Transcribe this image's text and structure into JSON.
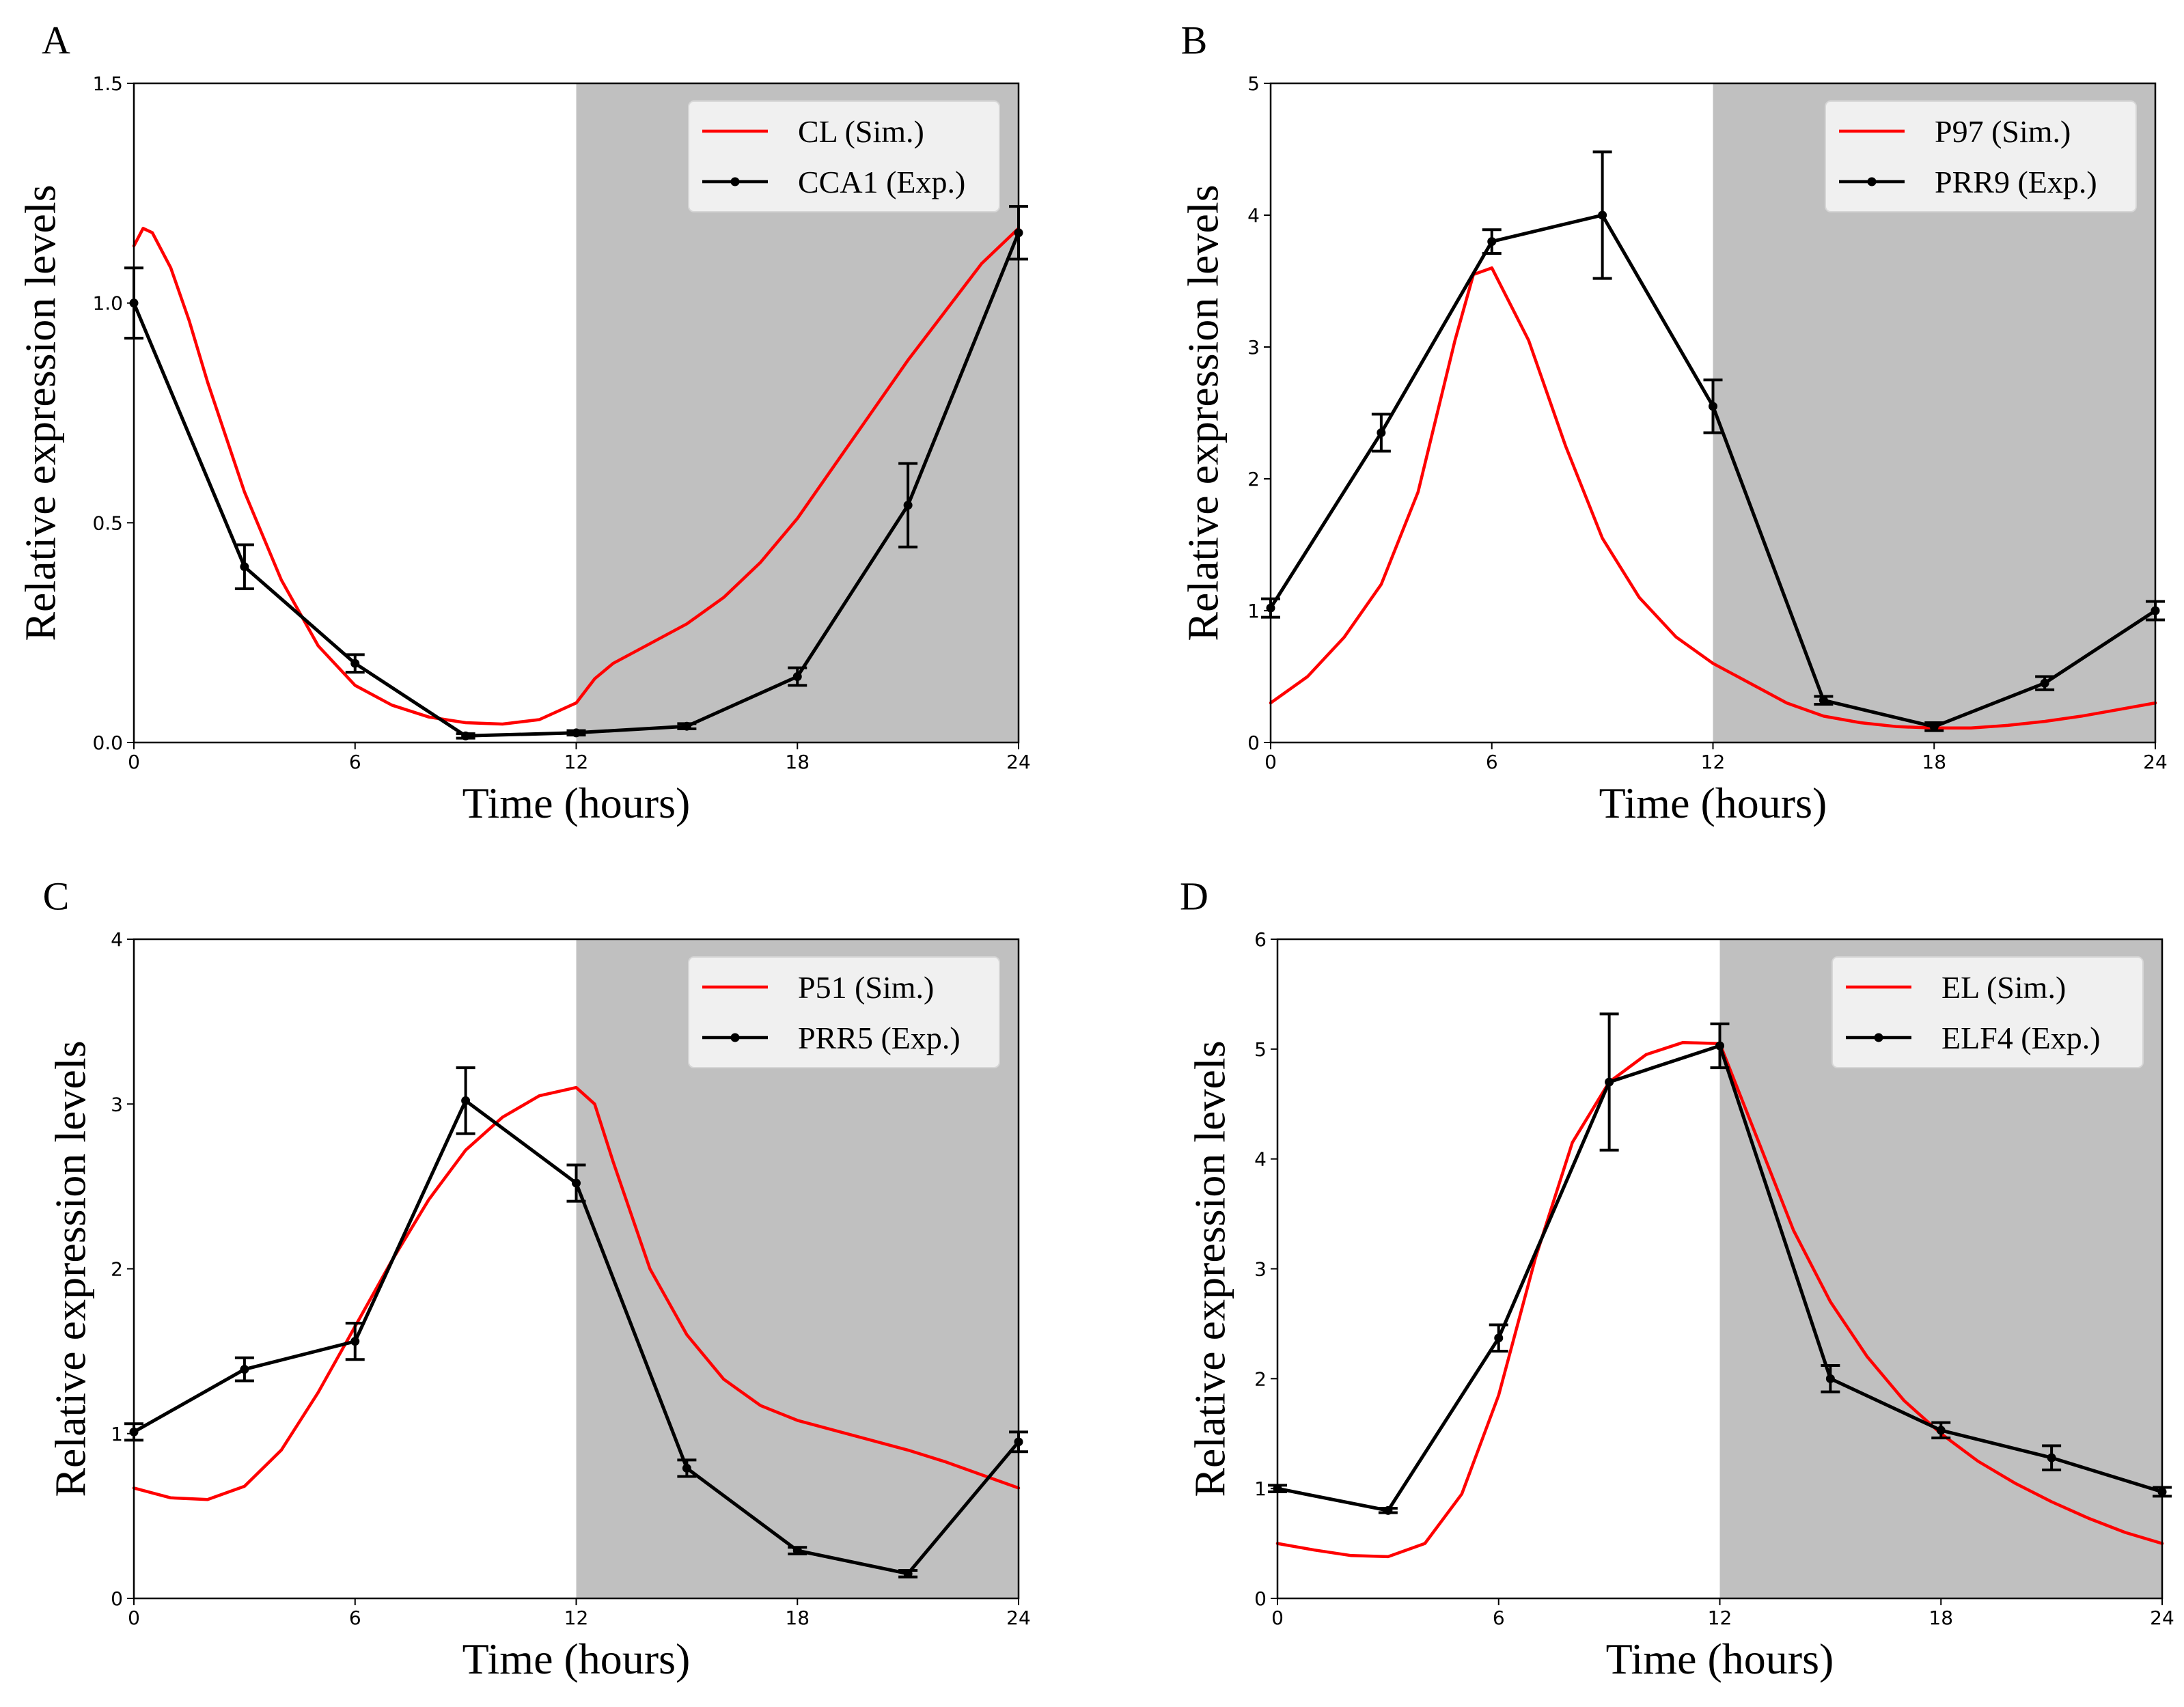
{
  "figure": {
    "shading_color": "#c0c0c0",
    "sim_color": "#ff0000",
    "exp_color": "#000000"
  },
  "chart_data": [
    {
      "type": "line",
      "panel_letter": "A",
      "xlabel": "Time (hours)",
      "ylabel": "Relative expression levels",
      "xlim": [
        0,
        24
      ],
      "ylim": [
        0,
        1.5
      ],
      "xticks": [
        "0",
        "6",
        "12",
        "18",
        "24"
      ],
      "yticks": [
        "0.0",
        "0.5",
        "1.0",
        "1.5"
      ],
      "dark_period": [
        12,
        24
      ],
      "legend_position": "top-right",
      "series": [
        {
          "name": "CL (Sim.)",
          "kind": "simulation",
          "x": [
            0,
            0.25,
            0.5,
            1,
            1.5,
            2,
            3,
            4,
            5,
            6,
            7,
            8,
            9,
            10,
            11,
            12,
            12.5,
            13,
            14,
            15,
            16,
            17,
            18,
            19,
            20,
            21,
            22,
            23,
            24
          ],
          "y": [
            1.13,
            1.17,
            1.16,
            1.08,
            0.96,
            0.82,
            0.57,
            0.37,
            0.22,
            0.13,
            0.085,
            0.058,
            0.045,
            0.042,
            0.052,
            0.09,
            0.145,
            0.18,
            0.225,
            0.27,
            0.33,
            0.41,
            0.51,
            0.63,
            0.75,
            0.87,
            0.98,
            1.09,
            1.17
          ]
        },
        {
          "name": "CCA1 (Exp.)",
          "kind": "experiment",
          "x": [
            0,
            3,
            6,
            9,
            12,
            15,
            18,
            21,
            24
          ],
          "y": [
            1.0,
            0.4,
            0.18,
            0.015,
            0.022,
            0.037,
            0.15,
            0.54,
            1.16
          ],
          "err": [
            0.08,
            0.05,
            0.02,
            0.005,
            0.005,
            0.006,
            0.02,
            0.095,
            0.06
          ]
        }
      ]
    },
    {
      "type": "line",
      "panel_letter": "B",
      "xlabel": "Time (hours)",
      "ylabel": "Relative expression levels",
      "xlim": [
        0,
        24
      ],
      "ylim": [
        0,
        5
      ],
      "xticks": [
        "0",
        "6",
        "12",
        "18",
        "24"
      ],
      "yticks": [
        "0",
        "1",
        "2",
        "3",
        "4",
        "5"
      ],
      "dark_period": [
        12,
        24
      ],
      "legend_position": "top-right",
      "series": [
        {
          "name": "P97 (Sim.)",
          "kind": "simulation",
          "x": [
            0,
            1,
            2,
            3,
            4,
            5,
            5.5,
            6,
            7,
            8,
            9,
            10,
            11,
            12,
            13,
            14,
            15,
            16,
            17,
            18,
            19,
            20,
            21,
            22,
            23,
            24
          ],
          "y": [
            0.3,
            0.5,
            0.8,
            1.2,
            1.9,
            3.05,
            3.55,
            3.6,
            3.05,
            2.25,
            1.55,
            1.1,
            0.8,
            0.6,
            0.45,
            0.3,
            0.2,
            0.15,
            0.12,
            0.11,
            0.11,
            0.13,
            0.16,
            0.2,
            0.25,
            0.3
          ]
        },
        {
          "name": "PRR9 (Exp.)",
          "kind": "experiment",
          "x": [
            0,
            3,
            6,
            9,
            12,
            15,
            18,
            21,
            24
          ],
          "y": [
            1.02,
            2.35,
            3.8,
            4.0,
            2.55,
            0.32,
            0.12,
            0.45,
            1.0
          ],
          "err": [
            0.07,
            0.14,
            0.09,
            0.48,
            0.2,
            0.03,
            0.03,
            0.05,
            0.07
          ]
        }
      ]
    },
    {
      "type": "line",
      "panel_letter": "C",
      "xlabel": "Time (hours)",
      "ylabel": "Relative expression levels",
      "xlim": [
        0,
        24
      ],
      "ylim": [
        0,
        4
      ],
      "xticks": [
        "0",
        "6",
        "12",
        "18",
        "24"
      ],
      "yticks": [
        "0",
        "1",
        "2",
        "3",
        "4"
      ],
      "dark_period": [
        12,
        24
      ],
      "legend_position": "top-right",
      "series": [
        {
          "name": "P51 (Sim.)",
          "kind": "simulation",
          "x": [
            0,
            1,
            2,
            3,
            4,
            5,
            6,
            7,
            8,
            9,
            10,
            11,
            12,
            12.5,
            13,
            14,
            15,
            16,
            17,
            18,
            19,
            20,
            21,
            22,
            23,
            24
          ],
          "y": [
            0.67,
            0.61,
            0.6,
            0.68,
            0.9,
            1.25,
            1.65,
            2.05,
            2.42,
            2.72,
            2.92,
            3.05,
            3.1,
            3.0,
            2.65,
            2.0,
            1.6,
            1.33,
            1.17,
            1.08,
            1.02,
            0.96,
            0.9,
            0.83,
            0.75,
            0.67
          ]
        },
        {
          "name": "PRR5 (Exp.)",
          "kind": "experiment",
          "x": [
            0,
            3,
            6,
            9,
            12,
            15,
            18,
            21,
            24
          ],
          "y": [
            1.01,
            1.39,
            1.56,
            3.02,
            2.52,
            0.79,
            0.29,
            0.15,
            0.95
          ],
          "err": [
            0.05,
            0.07,
            0.11,
            0.2,
            0.11,
            0.05,
            0.02,
            0.02,
            0.06
          ]
        }
      ]
    },
    {
      "type": "line",
      "panel_letter": "D",
      "xlabel": "Time (hours)",
      "ylabel": "Relative expression levels",
      "xlim": [
        0,
        24
      ],
      "ylim": [
        0,
        6
      ],
      "xticks": [
        "0",
        "6",
        "12",
        "18",
        "24"
      ],
      "yticks": [
        "0",
        "1",
        "2",
        "3",
        "4",
        "5",
        "6"
      ],
      "dark_period": [
        12,
        24
      ],
      "legend_position": "top-right",
      "series": [
        {
          "name": "EL (Sim.)",
          "kind": "simulation",
          "x": [
            0,
            1,
            2,
            3,
            4,
            5,
            6,
            7,
            8,
            9,
            10,
            11,
            12,
            13,
            14,
            15,
            16,
            17,
            18,
            19,
            20,
            21,
            22,
            23,
            24
          ],
          "y": [
            0.5,
            0.44,
            0.39,
            0.38,
            0.5,
            0.95,
            1.85,
            3.1,
            4.15,
            4.7,
            4.95,
            5.06,
            5.05,
            4.2,
            3.35,
            2.7,
            2.2,
            1.8,
            1.5,
            1.25,
            1.05,
            0.88,
            0.73,
            0.6,
            0.5
          ]
        },
        {
          "name": "ELF4 (Exp.)",
          "kind": "experiment",
          "x": [
            0,
            3,
            6,
            9,
            12,
            15,
            18,
            21,
            24
          ],
          "y": [
            1.0,
            0.8,
            2.37,
            4.7,
            5.03,
            2.0,
            1.53,
            1.28,
            0.97
          ],
          "err": [
            0.03,
            0.02,
            0.12,
            0.62,
            0.2,
            0.12,
            0.07,
            0.11,
            0.04
          ]
        }
      ]
    }
  ]
}
